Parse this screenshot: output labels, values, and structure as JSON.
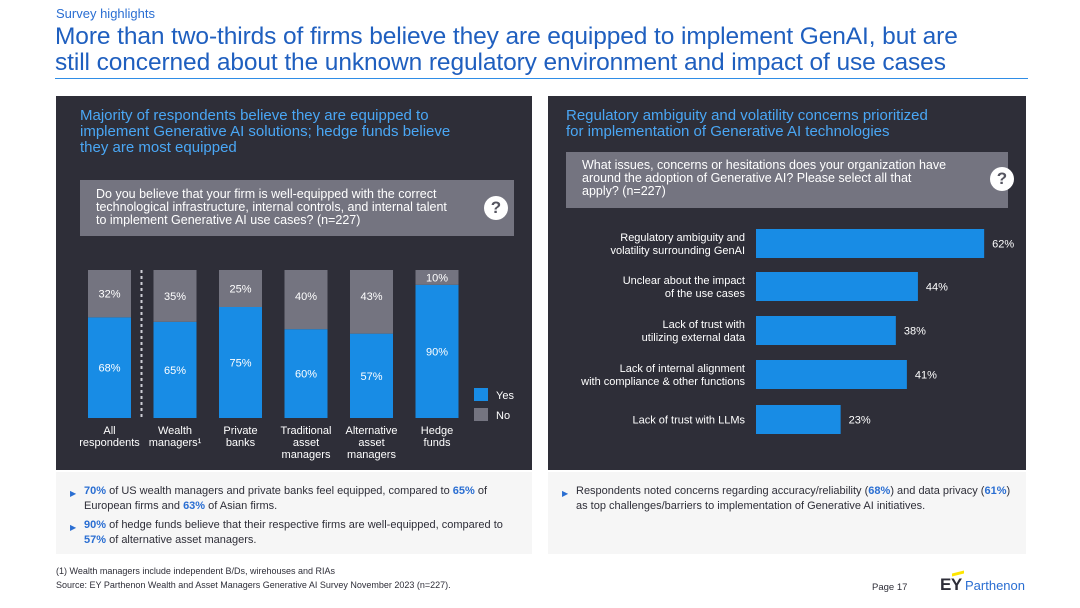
{
  "header": {
    "kicker": "Survey highlights",
    "headline_line1": "More than two-thirds of firms believe they are equipped to implement GenAI, but are",
    "headline_line2": "still concerned about the unknown regulatory environment and impact of use cases"
  },
  "left_panel": {
    "title_line1": "Majority of respondents believe they are equipped to",
    "title_line2": "implement Generative AI solutions; hedge funds believe",
    "title_line3": "they are most equipped",
    "question_line1": "Do you believe that your firm is well-equipped with the correct",
    "question_line2": "technological infrastructure, internal controls, and internal talent",
    "question_line3": "to implement Generative AI use cases? (n=227)",
    "question_icon": "question-mark-icon"
  },
  "right_panel": {
    "title_line1": "Regulatory ambiguity and volatility concerns prioritized",
    "title_line2": "for implementation of Generative AI technologies",
    "question_line1": "What issues, concerns or hesitations does your organization have",
    "question_line2": "around the adoption of Generative AI? Please select all that",
    "question_line3": "apply? (n=227)",
    "question_icon": "question-mark-icon"
  },
  "chart_data": [
    {
      "type": "bar",
      "stacked": true,
      "orientation": "vertical",
      "categories": [
        "All respondents",
        "Wealth managers¹",
        "Private banks",
        "Traditional asset managers",
        "Alternative asset managers",
        "Hedge funds"
      ],
      "category_lines": [
        [
          "All",
          "respondents"
        ],
        [
          "Wealth",
          "managers¹"
        ],
        [
          "Private",
          "banks"
        ],
        [
          "Traditional",
          "asset",
          "managers"
        ],
        [
          "Alternative",
          "asset",
          "managers"
        ],
        [
          "Hedge",
          "funds"
        ]
      ],
      "series": [
        {
          "name": "Yes",
          "values": [
            68,
            65,
            75,
            60,
            57,
            90
          ],
          "color": "#188ce5"
        },
        {
          "name": "No",
          "values": [
            32,
            35,
            25,
            40,
            43,
            10
          ],
          "color": "#747480"
        }
      ],
      "ylim": [
        0,
        100
      ],
      "unit": "%",
      "legend_position": "right",
      "grid": false
    },
    {
      "type": "bar",
      "orientation": "horizontal",
      "categories": [
        "Regulatory ambiguity and volatility surrounding GenAI",
        "Unclear about the impact of the use cases",
        "Lack of trust with utilizing external data",
        "Lack of internal alignment with compliance & other functions",
        "Lack of trust with LLMs"
      ],
      "category_lines": [
        [
          "Regulatory ambiguity and",
          "volatility surrounding GenAI"
        ],
        [
          "Unclear about the impact",
          "of the use cases"
        ],
        [
          "Lack of trust with",
          "utilizing external data"
        ],
        [
          "Lack of internal alignment",
          "with compliance & other functions"
        ],
        [
          "Lack of trust with LLMs"
        ]
      ],
      "values": [
        62,
        44,
        38,
        41,
        23
      ],
      "color": "#188ce5",
      "unit": "%",
      "grid": false
    }
  ],
  "left_bullets": [
    {
      "parts": [
        {
          "t": "70%",
          "hl": true
        },
        {
          "t": " of US wealth managers and private banks feel equipped, compared to "
        },
        {
          "t": "65%",
          "hl": true
        },
        {
          "t": " of European firms and "
        },
        {
          "t": "63%",
          "hl": true
        },
        {
          "t": " of Asian firms."
        }
      ]
    },
    {
      "parts": [
        {
          "t": "90%",
          "hl": true
        },
        {
          "t": " of hedge funds believe that their respective firms are well-equipped, compared to "
        },
        {
          "t": "57%",
          "hl": true
        },
        {
          "t": " of alternative asset managers."
        }
      ]
    }
  ],
  "right_bullets": [
    {
      "parts": [
        {
          "t": "Respondents noted concerns regarding accuracy/reliability ("
        },
        {
          "t": "68%",
          "hl": true
        },
        {
          "t": ") and data privacy ("
        },
        {
          "t": "61%",
          "hl": true
        },
        {
          "t": ") as top challenges/barriers to implementation of Generative AI initiatives."
        }
      ]
    }
  ],
  "footer": {
    "footnote": "(1) Wealth managers include independent B/Ds, wirehouses and RIAs",
    "source": "Source: EY Parthenon Wealth and Asset Managers Generative AI Survey November 2023 (n=227).",
    "page": "Page 17",
    "logo_ey": "EY",
    "logo_parthenon": "Parthenon",
    "logo_colors": {
      "bar": "#ffe600",
      "ey": "#2e2e38",
      "parthenon": "#2a6ed2"
    }
  }
}
